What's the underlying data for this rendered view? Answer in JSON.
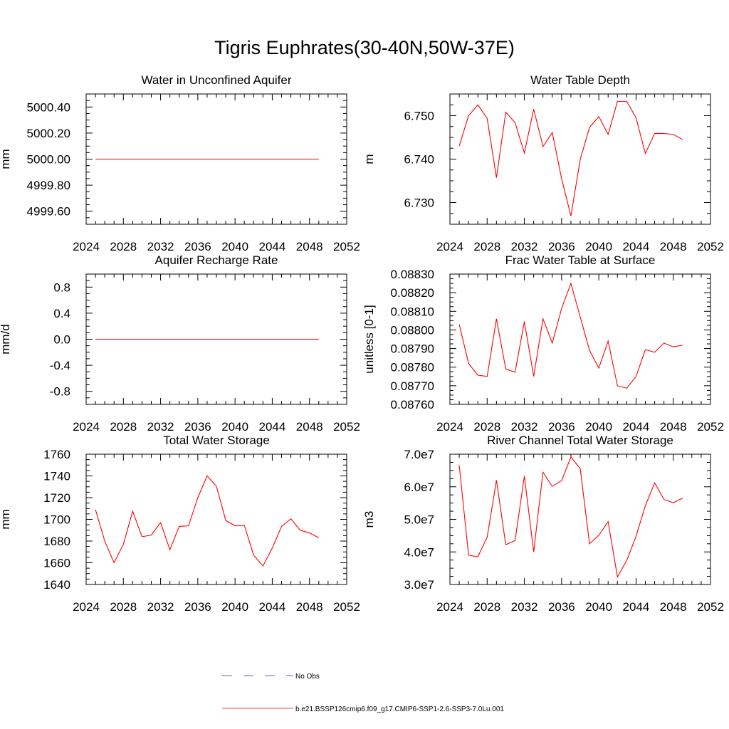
{
  "title": "Tigris Euphrates(30-40N,50W-37E)",
  "colors": {
    "model": "#ff0000",
    "obs": "#3333aa",
    "axis": "#000000"
  },
  "legend": {
    "obs_label": "No Obs",
    "model_label": "b.e21.BSSP126cmip6.f09_g17.CMIP6-SSP1-2.6-SSP3-7.0Lu.001"
  },
  "chart_data": [
    {
      "type": "line",
      "title": "Water in Unconfined Aquifer",
      "ylabel": "mm",
      "xlim": [
        2024,
        2052
      ],
      "ylim": [
        4999.5,
        5000.5
      ],
      "xticks": [
        2024,
        2028,
        2032,
        2036,
        2040,
        2044,
        2048,
        2052
      ],
      "xtick_labels": [
        "2024",
        "2028",
        "2032",
        "2036",
        "2040",
        "2044",
        "2048",
        "2052"
      ],
      "yticks": [
        4999.6,
        4999.8,
        5000.0,
        5000.2,
        5000.4
      ],
      "ytick_labels": [
        "4999.60",
        "4999.80",
        "5000.00",
        "5000.20",
        "5000.40"
      ],
      "x": [
        2025,
        2026,
        2027,
        2028,
        2029,
        2030,
        2031,
        2032,
        2033,
        2034,
        2035,
        2036,
        2037,
        2038,
        2039,
        2040,
        2041,
        2042,
        2043,
        2044,
        2045,
        2046,
        2047,
        2048,
        2049
      ],
      "y": [
        5000,
        5000,
        5000,
        5000,
        5000,
        5000,
        5000,
        5000,
        5000,
        5000,
        5000,
        5000,
        5000,
        5000,
        5000,
        5000,
        5000,
        5000,
        5000,
        5000,
        5000,
        5000,
        5000,
        5000,
        5000
      ]
    },
    {
      "type": "line",
      "title": "Water Table Depth",
      "ylabel": "m",
      "xlim": [
        2024,
        2052
      ],
      "ylim": [
        6.725,
        6.755
      ],
      "xticks": [
        2024,
        2028,
        2032,
        2036,
        2040,
        2044,
        2048,
        2052
      ],
      "xtick_labels": [
        "2024",
        "2028",
        "2032",
        "2036",
        "2040",
        "2044",
        "2048",
        "2052"
      ],
      "yticks": [
        6.73,
        6.74,
        6.75
      ],
      "ytick_labels": [
        "6.730",
        "6.740",
        "6.750"
      ],
      "x": [
        2025,
        2026,
        2027,
        2028,
        2029,
        2030,
        2031,
        2032,
        2033,
        2034,
        2035,
        2036,
        2037,
        2038,
        2039,
        2040,
        2041,
        2042,
        2043,
        2044,
        2045,
        2046,
        2047,
        2048,
        2049
      ],
      "y": [
        6.743,
        6.75,
        6.7525,
        6.7494,
        6.7357,
        6.7508,
        6.7484,
        6.7414,
        6.7515,
        6.7429,
        6.7461,
        6.7355,
        6.7269,
        6.7399,
        6.7473,
        6.7498,
        6.7457,
        6.7533,
        6.7533,
        6.7495,
        6.7413,
        6.7459,
        6.7459,
        6.7457,
        6.7445
      ]
    },
    {
      "type": "line",
      "title": "Aquifer Recharge Rate",
      "ylabel": "mm/d",
      "xlim": [
        2024,
        2052
      ],
      "ylim": [
        -1.0,
        1.0
      ],
      "xticks": [
        2024,
        2028,
        2032,
        2036,
        2040,
        2044,
        2048,
        2052
      ],
      "xtick_labels": [
        "2024",
        "2028",
        "2032",
        "2036",
        "2040",
        "2044",
        "2048",
        "2052"
      ],
      "yticks": [
        -0.8,
        -0.4,
        0.0,
        0.4,
        0.8
      ],
      "ytick_labels": [
        "-0.8",
        "-0.4",
        "0.0",
        "0.4",
        "0.8"
      ],
      "x": [
        2025,
        2026,
        2027,
        2028,
        2029,
        2030,
        2031,
        2032,
        2033,
        2034,
        2035,
        2036,
        2037,
        2038,
        2039,
        2040,
        2041,
        2042,
        2043,
        2044,
        2045,
        2046,
        2047,
        2048,
        2049
      ],
      "y": [
        0,
        0,
        0,
        0,
        0,
        0,
        0,
        0,
        0,
        0,
        0,
        0,
        0,
        0,
        0,
        0,
        0,
        0,
        0,
        0,
        0,
        0,
        0,
        0,
        0
      ]
    },
    {
      "type": "line",
      "title": "Frac Water Table at Surface",
      "ylabel": "unitless [0-1]",
      "xlim": [
        2024,
        2052
      ],
      "ylim": [
        0.0876,
        0.0883
      ],
      "xticks": [
        2024,
        2028,
        2032,
        2036,
        2040,
        2044,
        2048,
        2052
      ],
      "xtick_labels": [
        "2024",
        "2028",
        "2032",
        "2036",
        "2040",
        "2044",
        "2048",
        "2052"
      ],
      "yticks": [
        0.0876,
        0.0877,
        0.0878,
        0.0879,
        0.088,
        0.0881,
        0.0882,
        0.0883
      ],
      "ytick_labels": [
        "0.08760",
        "0.08770",
        "0.08780",
        "0.08790",
        "0.08800",
        "0.08810",
        "0.08820",
        "0.08830"
      ],
      "x": [
        2025,
        2026,
        2027,
        2028,
        2029,
        2030,
        2031,
        2032,
        2033,
        2034,
        2035,
        2036,
        2037,
        2038,
        2039,
        2040,
        2041,
        2042,
        2043,
        2044,
        2045,
        2046,
        2047,
        2048,
        2049
      ],
      "y": [
        0.08803,
        0.08782,
        0.087757,
        0.08775,
        0.08806,
        0.08779,
        0.087773,
        0.088045,
        0.08775,
        0.08806,
        0.08793,
        0.088115,
        0.08825,
        0.08807,
        0.08789,
        0.087795,
        0.08794,
        0.0877,
        0.087687,
        0.08775,
        0.087894,
        0.08788,
        0.087929,
        0.087909,
        0.087918
      ]
    },
    {
      "type": "line",
      "title": "Total Water Storage",
      "ylabel": "mm",
      "xlim": [
        2024,
        2052
      ],
      "ylim": [
        1640,
        1760
      ],
      "xticks": [
        2024,
        2028,
        2032,
        2036,
        2040,
        2044,
        2048,
        2052
      ],
      "xtick_labels": [
        "2024",
        "2028",
        "2032",
        "2036",
        "2040",
        "2044",
        "2048",
        "2052"
      ],
      "yticks": [
        1640,
        1660,
        1680,
        1700,
        1720,
        1740,
        1760
      ],
      "ytick_labels": [
        "1640",
        "1660",
        "1680",
        "1700",
        "1720",
        "1740",
        "1760"
      ],
      "x": [
        2025,
        2026,
        2027,
        2028,
        2029,
        2030,
        2031,
        2032,
        2033,
        2034,
        2035,
        2036,
        2037,
        2038,
        2039,
        2040,
        2041,
        2042,
        2043,
        2044,
        2045,
        2046,
        2047,
        2048,
        2049
      ],
      "y": [
        1709,
        1680,
        1660,
        1677,
        1707.5,
        1684,
        1685.5,
        1697,
        1672,
        1693.5,
        1694,
        1720,
        1740,
        1730.5,
        1699,
        1694,
        1694.5,
        1667,
        1657,
        1673.5,
        1693.5,
        1700.5,
        1690,
        1687.5,
        1683
      ]
    },
    {
      "type": "line",
      "title": "River Channel Total Water Storage",
      "ylabel": "m3",
      "xlim": [
        2024,
        2052
      ],
      "ylim": [
        30000000,
        70000000
      ],
      "xticks": [
        2024,
        2028,
        2032,
        2036,
        2040,
        2044,
        2048,
        2052
      ],
      "xtick_labels": [
        "2024",
        "2028",
        "2032",
        "2036",
        "2040",
        "2044",
        "2048",
        "2052"
      ],
      "yticks": [
        30000000,
        40000000,
        50000000,
        60000000,
        70000000
      ],
      "ytick_labels": [
        "3.0e7",
        "4.0e7",
        "5.0e7",
        "6.0e7",
        "7.0e7"
      ],
      "x": [
        2025,
        2026,
        2027,
        2028,
        2029,
        2030,
        2031,
        2032,
        2033,
        2034,
        2035,
        2036,
        2037,
        2038,
        2039,
        2040,
        2041,
        2042,
        2043,
        2044,
        2045,
        2046,
        2047,
        2048,
        2049
      ],
      "y": [
        66600000,
        39000000,
        38500000,
        44500000,
        62000000,
        42200000,
        43500000,
        63300000,
        40000000,
        64500000,
        60100000,
        61900000,
        69100000,
        65600000,
        42500000,
        45100000,
        49300000,
        32300000,
        37400000,
        44800000,
        54200000,
        61200000,
        56100000,
        55100000,
        56500000
      ]
    }
  ]
}
